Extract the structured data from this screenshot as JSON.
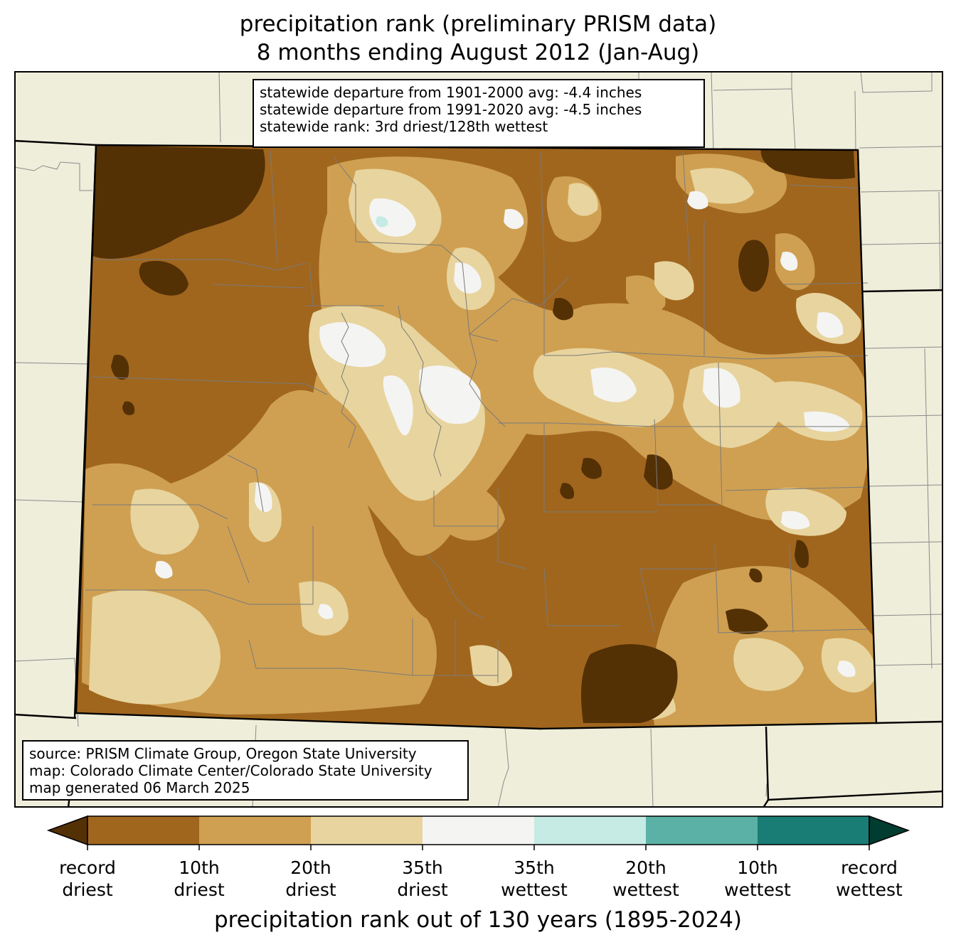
{
  "title": {
    "line1": "precipitation rank (preliminary PRISM data)",
    "line2": "8 months ending August 2012 (Jan-Aug)"
  },
  "stats": {
    "line1": "statewide departure from 1901-2000 avg: -4.4 inches",
    "line2": "statewide departure from 1991-2020 avg: -4.5 inches",
    "line3": "statewide rank: 3rd driest/128th wettest"
  },
  "source": {
    "line1": "source: PRISM Climate Group, Oregon State University",
    "line2": "map: Colorado Climate Center/Colorado State University",
    "line3": "map generated 06 March 2025"
  },
  "colors": {
    "background_land": "#efeedb",
    "record_driest": "#543005",
    "driest_10": "#a0661e",
    "driest_20": "#cfa052",
    "driest_35": "#e8d49e",
    "near_normal": "#f4f4f2",
    "wettest_35": "#c6eae4",
    "wettest_20": "#5bb1a5",
    "wettest_10": "#1a7d75",
    "record_wettest": "#003c30"
  },
  "colorbar": {
    "title": "precipitation rank out of 130 years (1895-2024)",
    "ticks": [
      {
        "top": "record",
        "bottom": "driest"
      },
      {
        "top": "10th",
        "bottom": "driest"
      },
      {
        "top": "20th",
        "bottom": "driest"
      },
      {
        "top": "35th",
        "bottom": "driest"
      },
      {
        "top": "35th",
        "bottom": "wettest"
      },
      {
        "top": "20th",
        "bottom": "wettest"
      },
      {
        "top": "10th",
        "bottom": "wettest"
      },
      {
        "top": "record",
        "bottom": "wettest"
      }
    ]
  }
}
